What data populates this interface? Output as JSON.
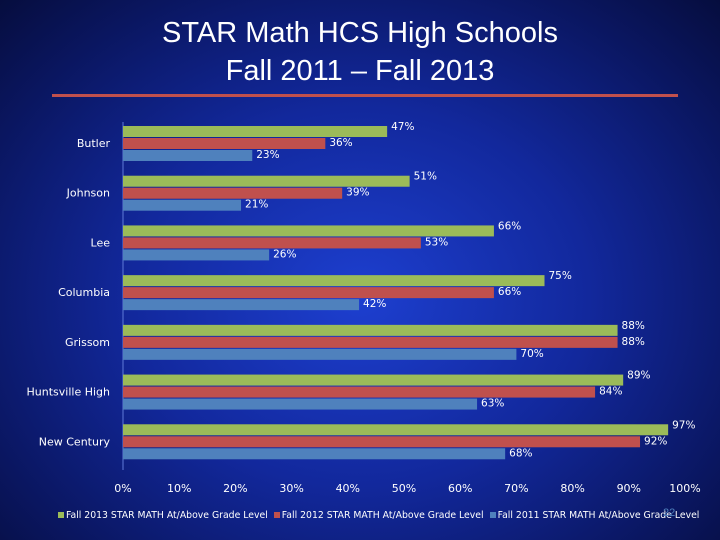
{
  "slide": {
    "title_line1": "STAR Math HCS High Schools",
    "title_line2": "Fall 2011 – Fall 2013",
    "number": "22"
  },
  "colors": {
    "background": "#1230b0",
    "title_rule": "#c0504d",
    "fall_2013": "#9bbb59",
    "fall_2012": "#c0504d",
    "fall_2011": "#4f81bd",
    "axis_text": "#ffffff",
    "data_label": "#ffffff"
  },
  "chart_data": {
    "type": "bar",
    "orientation": "horizontal",
    "title": "STAR Math HCS High Schools Fall 2011 – Fall 2013",
    "categories": [
      "Butler",
      "Johnson",
      "Lee",
      "Columbia",
      "Grissom",
      "Huntsville High",
      "New Century"
    ],
    "series": [
      {
        "name": "Fall 2013 STAR MATH At/Above Grade Level",
        "values": [
          47,
          51,
          66,
          75,
          88,
          89,
          97
        ]
      },
      {
        "name": "Fall 2012 STAR MATH At/Above Grade Level",
        "values": [
          36,
          39,
          53,
          66,
          88,
          84,
          92
        ]
      },
      {
        "name": "Fall 2011 STAR MATH At/Above Grade Level",
        "values": [
          23,
          21,
          26,
          42,
          70,
          63,
          68
        ]
      }
    ],
    "x_ticks": [
      "0%",
      "10%",
      "20%",
      "30%",
      "40%",
      "50%",
      "60%",
      "70%",
      "80%",
      "90%",
      "100%"
    ],
    "xlim": [
      0,
      100
    ],
    "value_suffix": "%",
    "grid": false,
    "legend_position": "bottom"
  }
}
